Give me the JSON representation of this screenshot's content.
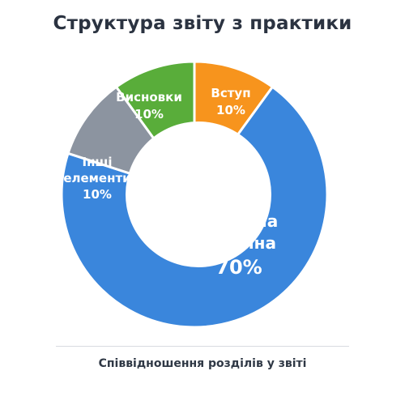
{
  "chart_data": {
    "type": "pie",
    "title": "Структура звіту з практики",
    "caption": "Співвідношення розділів у звіті",
    "unit": "%",
    "slices": [
      {
        "label": "Вступ",
        "value": 10,
        "value_label": "10%",
        "color": "#f7941d"
      },
      {
        "label": "Основна частина",
        "value": 70,
        "value_label": "70%",
        "color": "#3a86dc"
      },
      {
        "label": "Інші елементи",
        "value": 10,
        "value_label": "10%",
        "color": "#8c94a0"
      },
      {
        "label": "Висновки",
        "value": 10,
        "value_label": "10%",
        "color": "#59ad3a"
      }
    ]
  }
}
